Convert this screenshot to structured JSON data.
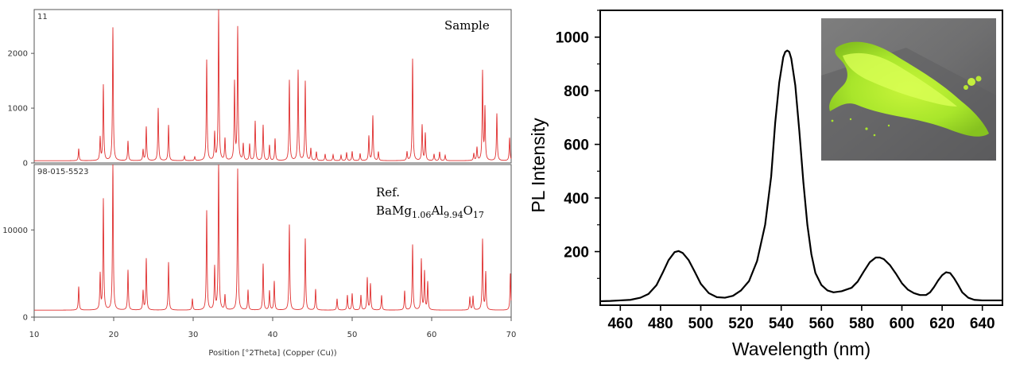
{
  "chart_data": [
    {
      "type": "line",
      "subtype": "xrd-stacked",
      "xlabel": "Position [°2Theta] (Copper (Cu))",
      "xlim": [
        10,
        70
      ],
      "xticks": [
        "10",
        "20",
        "30",
        "40",
        "50",
        "60",
        "70"
      ],
      "grid": false,
      "line_color": "#e03030",
      "panels": [
        {
          "name": "Sample",
          "corner_label": "11",
          "ylim": [
            0,
            2800
          ],
          "yticks": [
            0,
            1000,
            2000
          ],
          "baseline": 40,
          "peaks": [
            [
              15.6,
              220
            ],
            [
              18.3,
              420
            ],
            [
              18.7,
              1380
            ],
            [
              19.9,
              2430
            ],
            [
              21.8,
              360
            ],
            [
              23.7,
              200
            ],
            [
              24.1,
              620
            ],
            [
              25.6,
              960
            ],
            [
              26.9,
              650
            ],
            [
              28.9,
              80
            ],
            [
              30.2,
              70
            ],
            [
              31.7,
              1840
            ],
            [
              32.7,
              500
            ],
            [
              33.2,
              2750
            ],
            [
              34.0,
              400
            ],
            [
              35.2,
              1420
            ],
            [
              35.6,
              2420
            ],
            [
              36.3,
              300
            ],
            [
              37.1,
              300
            ],
            [
              37.8,
              720
            ],
            [
              38.8,
              650
            ],
            [
              39.6,
              280
            ],
            [
              40.3,
              400
            ],
            [
              42.1,
              1470
            ],
            [
              43.2,
              1650
            ],
            [
              44.1,
              1450
            ],
            [
              44.8,
              220
            ],
            [
              45.5,
              160
            ],
            [
              46.6,
              120
            ],
            [
              47.6,
              110
            ],
            [
              48.6,
              100
            ],
            [
              49.3,
              150
            ],
            [
              50.0,
              170
            ],
            [
              51.0,
              130
            ],
            [
              52.1,
              450
            ],
            [
              52.6,
              820
            ],
            [
              53.3,
              160
            ],
            [
              56.9,
              160
            ],
            [
              57.6,
              1860
            ],
            [
              58.8,
              650
            ],
            [
              59.2,
              500
            ],
            [
              60.3,
              120
            ],
            [
              61.0,
              160
            ],
            [
              61.7,
              100
            ],
            [
              65.3,
              130
            ],
            [
              65.7,
              240
            ],
            [
              66.4,
              1620
            ],
            [
              66.7,
              950
            ],
            [
              68.2,
              860
            ],
            [
              69.8,
              420
            ]
          ],
          "peak_width_deg": 0.12
        },
        {
          "name": "Ref. BaMg1.06Al9.94O17",
          "corner_label": "98-015-5523",
          "label_main": "Ref.",
          "formula_parts": [
            [
              "BaMg",
              ""
            ],
            [
              "1.06",
              "sub"
            ],
            [
              "Al",
              ""
            ],
            [
              "9.94",
              "sub"
            ],
            [
              "O",
              ""
            ],
            [
              "17",
              "sub"
            ]
          ],
          "ylim": [
            0,
            17500
          ],
          "yticks": [
            0,
            10000
          ],
          "baseline": 800,
          "peaks": [
            [
              15.6,
              2700
            ],
            [
              18.3,
              4100
            ],
            [
              18.7,
              12700
            ],
            [
              19.9,
              16900
            ],
            [
              21.8,
              4600
            ],
            [
              23.7,
              2200
            ],
            [
              24.1,
              5900
            ],
            [
              26.9,
              5500
            ],
            [
              29.9,
              1300
            ],
            [
              31.7,
              11400
            ],
            [
              32.7,
              4900
            ],
            [
              33.2,
              17300
            ],
            [
              34.0,
              1700
            ],
            [
              35.6,
              16200
            ],
            [
              36.9,
              2300
            ],
            [
              38.8,
              5300
            ],
            [
              39.6,
              2200
            ],
            [
              40.2,
              3300
            ],
            [
              42.1,
              9800
            ],
            [
              44.1,
              8200
            ],
            [
              45.4,
              2400
            ],
            [
              48.1,
              1300
            ],
            [
              49.4,
              1700
            ],
            [
              50.0,
              1900
            ],
            [
              51.1,
              1700
            ],
            [
              51.9,
              3700
            ],
            [
              52.3,
              3000
            ],
            [
              53.7,
              1700
            ],
            [
              56.6,
              2200
            ],
            [
              57.6,
              7500
            ],
            [
              58.7,
              5800
            ],
            [
              59.1,
              4400
            ],
            [
              59.5,
              3200
            ],
            [
              64.8,
              1500
            ],
            [
              65.2,
              1600
            ],
            [
              66.4,
              8100
            ],
            [
              66.8,
              4300
            ],
            [
              69.9,
              4200
            ]
          ],
          "peak_width_deg": 0.12
        }
      ]
    },
    {
      "type": "line",
      "xlabel": "Wavelength (nm)",
      "ylabel": "PL Intensity",
      "xlim": [
        450,
        650
      ],
      "ylim": [
        0,
        1100
      ],
      "xticks": [
        460,
        480,
        500,
        520,
        540,
        560,
        580,
        600,
        620,
        640
      ],
      "yticks": [
        200,
        400,
        600,
        800,
        1000
      ],
      "grid": false,
      "series": [
        {
          "color": "#000000",
          "x": [
            450,
            455,
            460,
            465,
            470,
            474,
            478,
            481,
            484,
            487,
            489,
            491,
            494,
            497,
            500,
            504,
            508,
            512,
            516,
            520,
            524,
            528,
            532,
            535,
            537,
            539,
            541,
            542,
            543,
            544,
            545,
            547,
            549,
            551,
            553,
            555,
            557,
            560,
            563,
            566,
            570,
            575,
            578,
            581,
            584,
            587,
            589,
            591,
            594,
            597,
            600,
            603,
            606,
            609,
            612,
            614,
            616,
            618,
            620,
            622,
            624,
            626,
            628,
            630,
            633,
            636,
            640,
            645,
            650
          ],
          "y": [
            15,
            16,
            18,
            20,
            28,
            42,
            75,
            120,
            168,
            198,
            202,
            195,
            168,
            125,
            80,
            45,
            30,
            28,
            35,
            55,
            90,
            165,
            300,
            480,
            680,
            830,
            925,
            945,
            950,
            945,
            920,
            820,
            650,
            460,
            300,
            190,
            120,
            75,
            55,
            48,
            52,
            65,
            88,
            125,
            160,
            178,
            178,
            172,
            150,
            118,
            82,
            58,
            45,
            38,
            38,
            48,
            68,
            92,
            112,
            123,
            120,
            100,
            75,
            48,
            28,
            20,
            18,
            18,
            18
          ]
        }
      ],
      "inset_photo": "green phosphor powder on gray surface"
    }
  ]
}
